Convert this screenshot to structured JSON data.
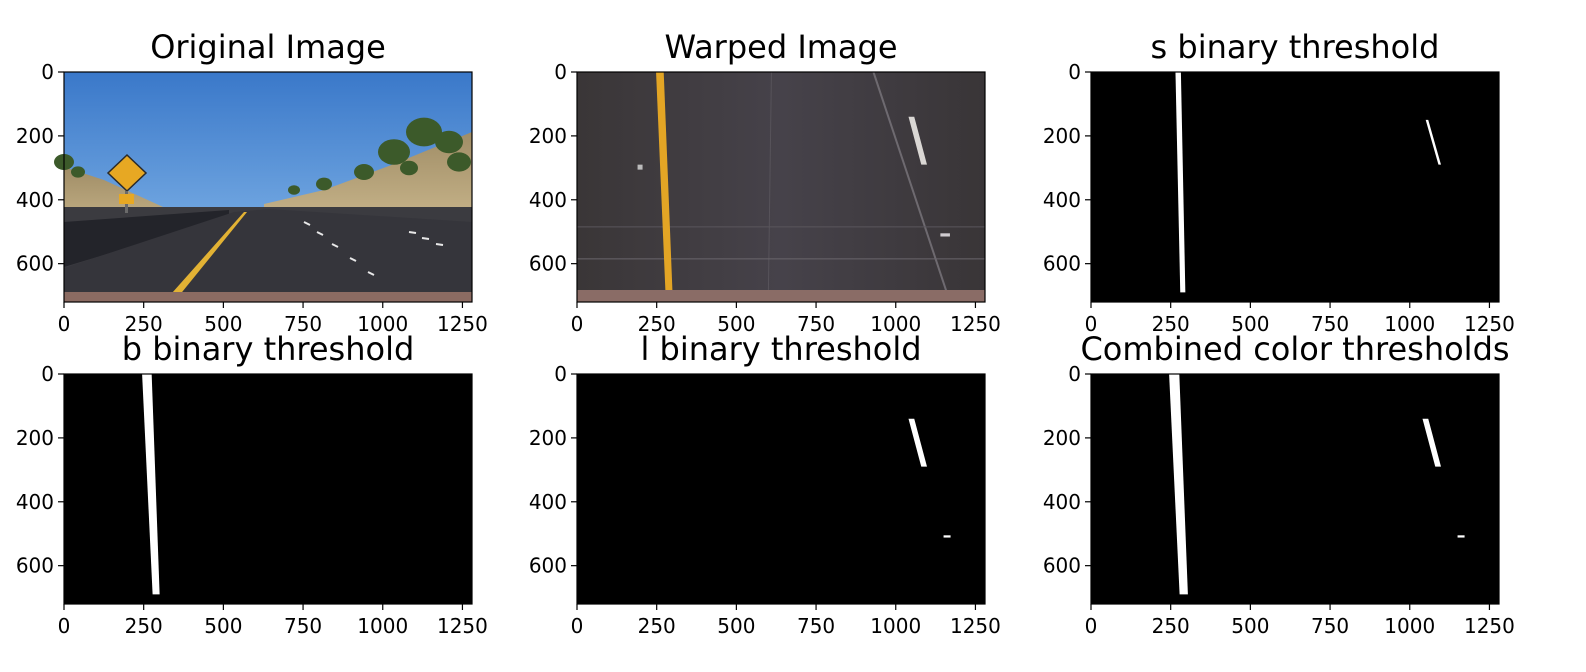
{
  "chart_data": [
    {
      "type": "image",
      "title": "Original Image",
      "image": "road-scene",
      "xticks": [
        0,
        250,
        500,
        750,
        1000,
        1250
      ],
      "yticks": [
        0,
        200,
        400,
        600
      ],
      "xlim": [
        0,
        1280
      ],
      "ylim": [
        720,
        0
      ]
    },
    {
      "type": "image",
      "title": "Warped Image",
      "image": "warped-road",
      "xticks": [
        0,
        250,
        500,
        750,
        1000,
        1250
      ],
      "yticks": [
        0,
        200,
        400,
        600
      ],
      "xlim": [
        0,
        1280
      ],
      "ylim": [
        720,
        0
      ]
    },
    {
      "type": "image",
      "title": "s binary threshold",
      "image": "binary-mask",
      "xticks": [
        0,
        250,
        500,
        750,
        1000,
        1250
      ],
      "yticks": [
        0,
        200,
        400,
        600
      ],
      "xlim": [
        0,
        1280
      ],
      "ylim": [
        720,
        0
      ],
      "lanes": [
        {
          "top": [
            [
              265,
              0
            ],
            [
              282,
              0
            ]
          ],
          "bottom": [
            [
              280,
              690
            ],
            [
              296,
              690
            ]
          ]
        },
        {
          "top": [
            [
              1050,
              150
            ],
            [
              1058,
              150
            ]
          ],
          "bottom": [
            [
              1090,
              290
            ],
            [
              1098,
              290
            ]
          ]
        }
      ]
    },
    {
      "type": "image",
      "title": "b binary threshold",
      "image": "binary-mask",
      "xticks": [
        0,
        250,
        500,
        750,
        1000,
        1250
      ],
      "yticks": [
        0,
        200,
        400,
        600
      ],
      "xlim": [
        0,
        1280
      ],
      "ylim": [
        720,
        0
      ],
      "lanes": [
        {
          "top": [
            [
              245,
              0
            ],
            [
              275,
              0
            ]
          ],
          "bottom": [
            [
              278,
              690
            ],
            [
              300,
              690
            ]
          ]
        }
      ]
    },
    {
      "type": "image",
      "title": "l binary threshold",
      "image": "binary-mask",
      "xticks": [
        0,
        250,
        500,
        750,
        1000,
        1250
      ],
      "yticks": [
        0,
        200,
        400,
        600
      ],
      "xlim": [
        0,
        1280
      ],
      "ylim": [
        720,
        0
      ],
      "lanes": [
        {
          "top": [
            [
              1040,
              140
            ],
            [
              1058,
              140
            ]
          ],
          "bottom": [
            [
              1080,
              290
            ],
            [
              1098,
              290
            ]
          ]
        },
        {
          "top": [
            [
              1150,
              505
            ],
            [
              1172,
              505
            ]
          ],
          "bottom": [
            [
              1150,
              512
            ],
            [
              1172,
              512
            ]
          ]
        }
      ]
    },
    {
      "type": "image",
      "title": "Combined color thresholds",
      "image": "binary-mask",
      "xticks": [
        0,
        250,
        500,
        750,
        1000,
        1250
      ],
      "yticks": [
        0,
        200,
        400,
        600
      ],
      "xlim": [
        0,
        1280
      ],
      "ylim": [
        720,
        0
      ],
      "lanes": [
        {
          "top": [
            [
              245,
              0
            ],
            [
              277,
              0
            ]
          ],
          "bottom": [
            [
              278,
              690
            ],
            [
              304,
              690
            ]
          ]
        },
        {
          "top": [
            [
              1040,
              140
            ],
            [
              1058,
              140
            ]
          ],
          "bottom": [
            [
              1080,
              290
            ],
            [
              1098,
              290
            ]
          ]
        },
        {
          "top": [
            [
              1150,
              505
            ],
            [
              1172,
              505
            ]
          ],
          "bottom": [
            [
              1150,
              512
            ],
            [
              1172,
              512
            ]
          ]
        }
      ]
    }
  ]
}
